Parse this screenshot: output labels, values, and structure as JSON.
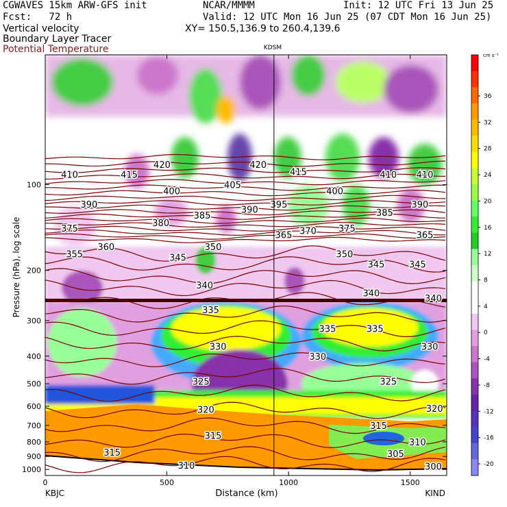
{
  "header": {
    "model": "CGWAVES 15km ARW-GFS init",
    "org": "NCAR/MMMM",
    "init": "Init: 12 UTC Fri 13 Jun 25",
    "fcst": "Fcst:   72 h",
    "valid": "Valid: 12 UTC Mon 16 Jun 25 (07 CDT Mon 16 Jun 25)",
    "field1": "Vertical velocity",
    "xy": "XY= 150.5,136.9 to 260.4,139.6",
    "field2": "Boundary Layer Tracer",
    "field3": "Potential Temperature"
  },
  "chart_data": {
    "type": "heatmap",
    "title": "KDSM",
    "ylabel": "Pressure (hPa), log scale",
    "xlabel": "Distance (km)",
    "x_start_label": "KBJC",
    "x_end_label": "KIND",
    "xlim": [
      0,
      1650
    ],
    "ylim": [
      1050,
      35
    ],
    "y_scale": "log",
    "x_ticks": [
      0,
      500,
      1000,
      1500
    ],
    "y_ticks": [
      100,
      200,
      300,
      400,
      500,
      600,
      700,
      800,
      900,
      1000
    ],
    "marker_line_km": 940,
    "colorbar": {
      "units": "cm s⁻¹",
      "ticks": [
        36,
        32,
        28,
        24,
        20,
        16,
        12,
        8,
        4,
        0,
        -4,
        -8,
        -12,
        -16,
        -20
      ],
      "colors": [
        "#ff0000",
        "#ff3300",
        "#ff6600",
        "#ff9900",
        "#ffbb00",
        "#ffdd00",
        "#ffff00",
        "#ccff33",
        "#99ff44",
        "#66ff66",
        "#33ee33",
        "#22cc22",
        "#99ff99",
        "#ccffcc",
        "#ffffff",
        "#ffffff",
        "#f0c8f0",
        "#e0a0e0",
        "#cc77cc",
        "#aa55bb",
        "#8833aa",
        "#6622aa",
        "#5533bb",
        "#4444cc",
        "#6666dd",
        "#8888ee"
      ]
    },
    "isentrope_labels": [
      {
        "v": "410",
        "x": 100,
        "p": 92
      },
      {
        "v": "415",
        "x": 345,
        "p": 92
      },
      {
        "v": "420",
        "x": 480,
        "p": 85
      },
      {
        "v": "420",
        "x": 875,
        "p": 85
      },
      {
        "v": "415",
        "x": 1040,
        "p": 90
      },
      {
        "v": "410",
        "x": 1410,
        "p": 92
      },
      {
        "v": "410",
        "x": 1560,
        "p": 92
      },
      {
        "v": "390",
        "x": 180,
        "p": 117
      },
      {
        "v": "400",
        "x": 520,
        "p": 105
      },
      {
        "v": "405",
        "x": 770,
        "p": 100
      },
      {
        "v": "395",
        "x": 960,
        "p": 117
      },
      {
        "v": "400",
        "x": 1190,
        "p": 105
      },
      {
        "v": "390",
        "x": 1540,
        "p": 117
      },
      {
        "v": "380",
        "x": 475,
        "p": 136
      },
      {
        "v": "385",
        "x": 645,
        "p": 128
      },
      {
        "v": "390",
        "x": 840,
        "p": 122
      },
      {
        "v": "385",
        "x": 1395,
        "p": 125
      },
      {
        "v": "375",
        "x": 100,
        "p": 142
      },
      {
        "v": "375",
        "x": 1240,
        "p": 142
      },
      {
        "v": "370",
        "x": 1080,
        "p": 145
      },
      {
        "v": "365",
        "x": 1560,
        "p": 150
      },
      {
        "v": "365",
        "x": 980,
        "p": 150
      },
      {
        "v": "360",
        "x": 250,
        "p": 165
      },
      {
        "v": "355",
        "x": 120,
        "p": 175
      },
      {
        "v": "350",
        "x": 690,
        "p": 165
      },
      {
        "v": "350",
        "x": 1230,
        "p": 175
      },
      {
        "v": "345",
        "x": 545,
        "p": 180
      },
      {
        "v": "345",
        "x": 1360,
        "p": 190
      },
      {
        "v": "345",
        "x": 1530,
        "p": 190
      },
      {
        "v": "340",
        "x": 655,
        "p": 225
      },
      {
        "v": "340",
        "x": 1340,
        "p": 240
      },
      {
        "v": "340",
        "x": 1595,
        "p": 250
      },
      {
        "v": "335",
        "x": 680,
        "p": 275
      },
      {
        "v": "335",
        "x": 1160,
        "p": 320
      },
      {
        "v": "335",
        "x": 1355,
        "p": 320
      },
      {
        "v": "330",
        "x": 710,
        "p": 370
      },
      {
        "v": "330",
        "x": 1120,
        "p": 400
      },
      {
        "v": "330",
        "x": 1580,
        "p": 370
      },
      {
        "v": "325",
        "x": 640,
        "p": 490
      },
      {
        "v": "325",
        "x": 1410,
        "p": 490
      },
      {
        "v": "320",
        "x": 660,
        "p": 615
      },
      {
        "v": "320",
        "x": 1600,
        "p": 610
      },
      {
        "v": "315",
        "x": 690,
        "p": 760
      },
      {
        "v": "315",
        "x": 1370,
        "p": 700
      },
      {
        "v": "315",
        "x": 275,
        "p": 870
      },
      {
        "v": "310",
        "x": 580,
        "p": 965
      },
      {
        "v": "310",
        "x": 1530,
        "p": 800
      },
      {
        "v": "305",
        "x": 1440,
        "p": 880
      },
      {
        "v": "300",
        "x": 1595,
        "p": 975
      }
    ]
  }
}
